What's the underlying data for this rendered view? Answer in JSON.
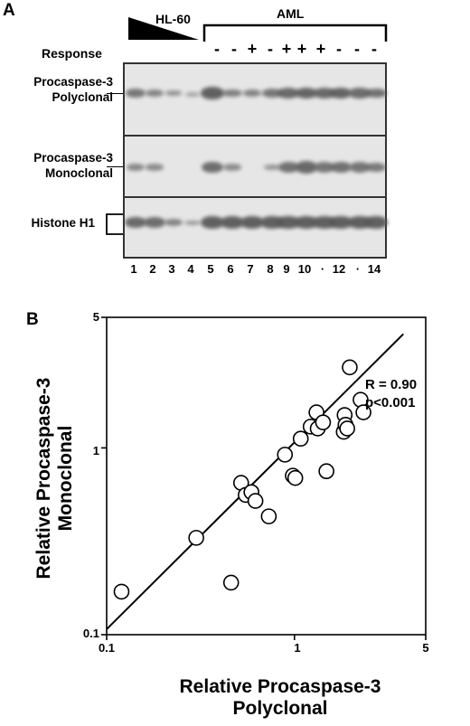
{
  "panel_a": {
    "letter": "A",
    "hl60_label": "HL-60",
    "aml_label": "AML",
    "response_label": "Response",
    "response_marks": [
      "-",
      "-",
      "+",
      "-",
      "+",
      "+",
      "+",
      "-",
      "-",
      "-"
    ],
    "rows": [
      {
        "label_line1": "Procaspase-3",
        "label_line2": "Polyclonal"
      },
      {
        "label_line1": "Procaspase-3",
        "label_line2": "Monoclonal"
      },
      {
        "label_line1": "Histone H1",
        "label_line2": ""
      }
    ],
    "lanes": [
      "1",
      "2",
      "3",
      "4",
      "5",
      "6",
      "7",
      "8",
      "9",
      "10",
      "·",
      "12",
      "·",
      "14"
    ],
    "band_intensity": {
      "polyclonal": [
        0.7,
        0.55,
        0.4,
        0.2,
        0.95,
        0.6,
        0.55,
        0.7,
        0.85,
        0.9,
        0.85,
        0.9,
        0.8,
        0.75
      ],
      "monoclonal": [
        0.5,
        0.45,
        0.0,
        0.0,
        0.8,
        0.45,
        0.0,
        0.35,
        0.75,
        0.85,
        0.7,
        0.75,
        0.7,
        0.65
      ],
      "histone": [
        0.85,
        0.8,
        0.55,
        0.3,
        0.95,
        0.95,
        0.95,
        0.95,
        0.95,
        0.95,
        0.95,
        0.95,
        0.95,
        0.95
      ]
    }
  },
  "panel_b": {
    "letter": "B",
    "stat_r": "R = 0.90",
    "stat_p": "p<0.001",
    "y_tick_labels": [
      "5",
      "1",
      "0.1"
    ],
    "x_tick_labels": [
      "0.1",
      "1",
      "5"
    ]
  },
  "chart_data": {
    "type": "scatter",
    "xlabel": "Relative Procaspase-3 Polyclonal",
    "ylabel": "Relative Procaspase-3 Monoclonal",
    "xscale": "log",
    "yscale": "log",
    "xlim": [
      0.1,
      5
    ],
    "ylim": [
      0.1,
      5
    ],
    "grid": false,
    "points": [
      {
        "x": 0.12,
        "y": 0.17
      },
      {
        "x": 0.3,
        "y": 0.33
      },
      {
        "x": 0.46,
        "y": 0.19
      },
      {
        "x": 0.52,
        "y": 0.65
      },
      {
        "x": 0.55,
        "y": 0.56
      },
      {
        "x": 0.59,
        "y": 0.58
      },
      {
        "x": 0.62,
        "y": 0.52
      },
      {
        "x": 0.73,
        "y": 0.43
      },
      {
        "x": 0.89,
        "y": 0.92
      },
      {
        "x": 0.98,
        "y": 0.71
      },
      {
        "x": 1.01,
        "y": 0.69
      },
      {
        "x": 1.08,
        "y": 1.12
      },
      {
        "x": 1.22,
        "y": 1.3
      },
      {
        "x": 1.31,
        "y": 1.55
      },
      {
        "x": 1.33,
        "y": 1.27
      },
      {
        "x": 1.42,
        "y": 1.37
      },
      {
        "x": 1.48,
        "y": 0.75
      },
      {
        "x": 1.83,
        "y": 1.22
      },
      {
        "x": 1.85,
        "y": 1.5
      },
      {
        "x": 1.87,
        "y": 1.33
      },
      {
        "x": 1.91,
        "y": 1.27
      },
      {
        "x": 1.97,
        "y": 2.7
      },
      {
        "x": 2.25,
        "y": 1.81
      },
      {
        "x": 2.33,
        "y": 1.55
      }
    ],
    "fit_line": {
      "x": [
        0.1,
        3.8
      ],
      "y": [
        0.107,
        4.07
      ]
    },
    "annotations": [
      "R = 0.90",
      "p<0.001"
    ]
  }
}
